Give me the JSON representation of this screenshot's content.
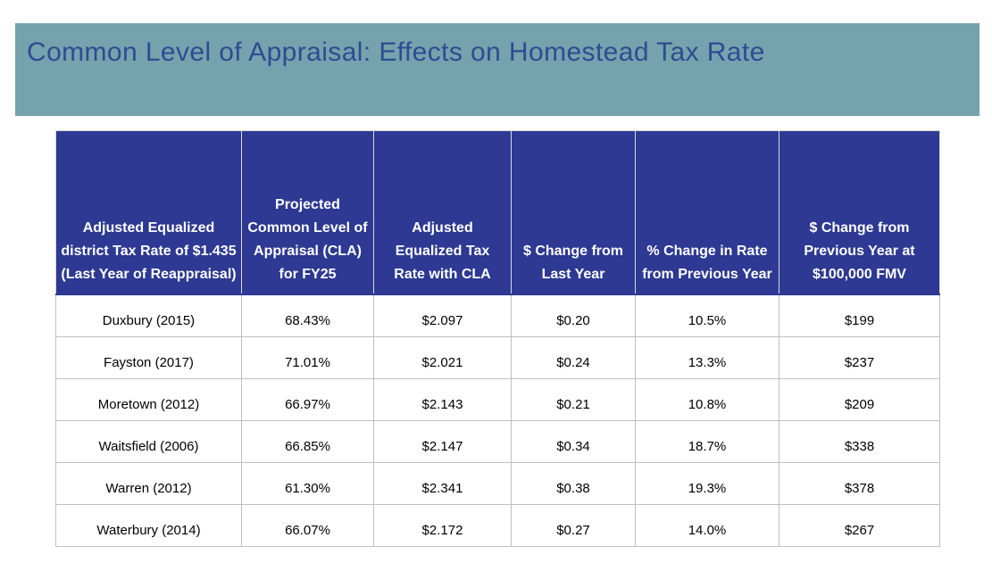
{
  "slide": {
    "title": "Common Level of Appraisal: Effects on Homestead Tax Rate"
  },
  "colors": {
    "banner_bg": "#75A3AD",
    "title_text": "#2F4B93",
    "header_bg": "#2D3992",
    "header_text": "#FFFFFF",
    "body_text": "#000000",
    "grid_line": "#BFBFBF",
    "header_grid_line": "#D9D9D9"
  },
  "table": {
    "columns": [
      "Adjusted Equalized district Tax Rate of $1.435 (Last Year of Reappraisal)",
      "Projected Common Level of Appraisal (CLA) for FY25",
      "Adjusted Equalized Tax Rate with CLA",
      "$ Change from Last Year",
      "% Change in Rate from Previous Year",
      "$ Change from Previous Year at $100,000 FMV"
    ],
    "rows": [
      [
        "Duxbury (2015)",
        "68.43%",
        "$2.097",
        "$0.20",
        "10.5%",
        "$199"
      ],
      [
        "Fayston (2017)",
        "71.01%",
        "$2.021",
        "$0.24",
        "13.3%",
        "$237"
      ],
      [
        "Moretown (2012)",
        "66.97%",
        "$2.143",
        "$0.21",
        "10.8%",
        "$209"
      ],
      [
        "Waitsfield (2006)",
        "66.85%",
        "$2.147",
        "$0.34",
        "18.7%",
        "$338"
      ],
      [
        "Warren (2012)",
        "61.30%",
        "$2.341",
        "$0.38",
        "19.3%",
        "$378"
      ],
      [
        "Waterbury (2014)",
        "66.07%",
        "$2.172",
        "$0.27",
        "14.0%",
        "$267"
      ]
    ]
  }
}
